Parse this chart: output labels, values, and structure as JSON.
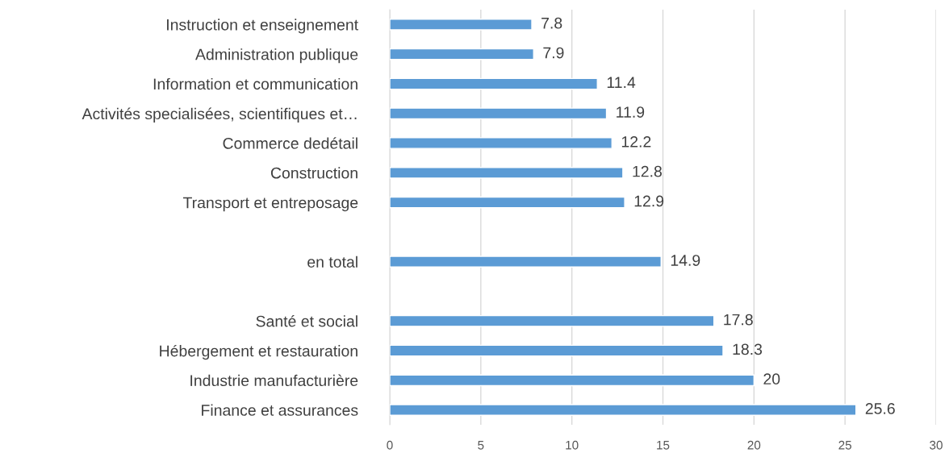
{
  "chart_data": {
    "type": "bar",
    "orientation": "horizontal",
    "categories": [
      "Instruction et enseignement",
      "Administration publique",
      "Information et communication",
      "Activités specialisées, scientifiques et…",
      "Commerce dedétail",
      "Construction",
      "Transport et entreposage",
      null,
      "en total",
      null,
      "Santé et social",
      "Hébergement et restauration",
      "Industrie manufacturière",
      "Finance et assurances"
    ],
    "values": [
      7.8,
      7.9,
      11.4,
      11.9,
      12.2,
      12.8,
      12.9,
      null,
      14.9,
      null,
      17.8,
      18.3,
      20,
      25.6
    ],
    "color": "#5b9bd5",
    "xlim": [
      0,
      30
    ],
    "xticks": [
      0,
      5,
      10,
      15,
      20,
      25,
      30
    ],
    "grid": "x",
    "data_labels": true
  }
}
